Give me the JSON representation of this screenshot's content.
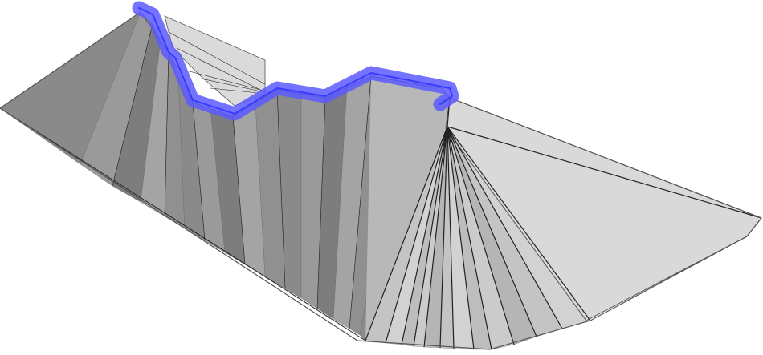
{
  "scene": {
    "background_color": "#ffffff",
    "left_fan_colors": [
      "#8a8a8a",
      "#9a9a9a",
      "#7d7d7d",
      "#a4a4a4",
      "#909090"
    ],
    "right_fan_colors": [
      "#c4c4c4",
      "#d2d2d2",
      "#bdbdbd",
      "#cbcbcb",
      "#b5b5b5"
    ],
    "back_flap_color": "#dadada",
    "right_wing_color": "#d9d9d9",
    "crease_color": "#222222",
    "edge_color": "#555555",
    "highlight_color": "#5b5bff",
    "highlight_opacity": 0.85,
    "selection": {
      "name": "selected-top-edge",
      "description_visible": false
    }
  }
}
